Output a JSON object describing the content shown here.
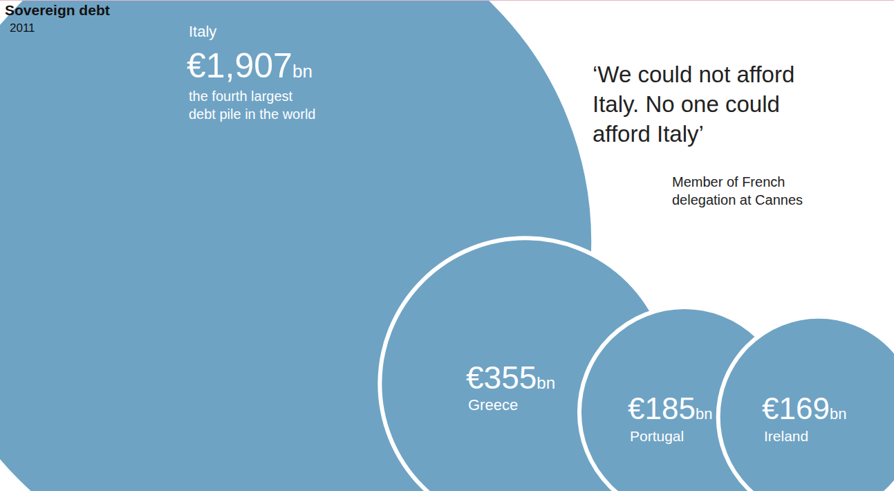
{
  "chart_data": {
    "type": "bubble",
    "title": "Sovereign debt",
    "subtitle": "2011",
    "categories": [
      "Italy",
      "Greece",
      "Portugal",
      "Ireland"
    ],
    "values": [
      1907,
      355,
      185,
      169
    ],
    "value_labels": [
      "€1,907bn",
      "€355bn",
      "€185bn",
      "€169bn"
    ],
    "color": "#6fa3c4",
    "data_labels": true,
    "tick_labels": false,
    "annotations": [
      "the fourth largest debt pile in the world",
      "‘We could not afford Italy. No one could afford Italy’",
      "Member of French delegation at Cannes"
    ]
  }
}
